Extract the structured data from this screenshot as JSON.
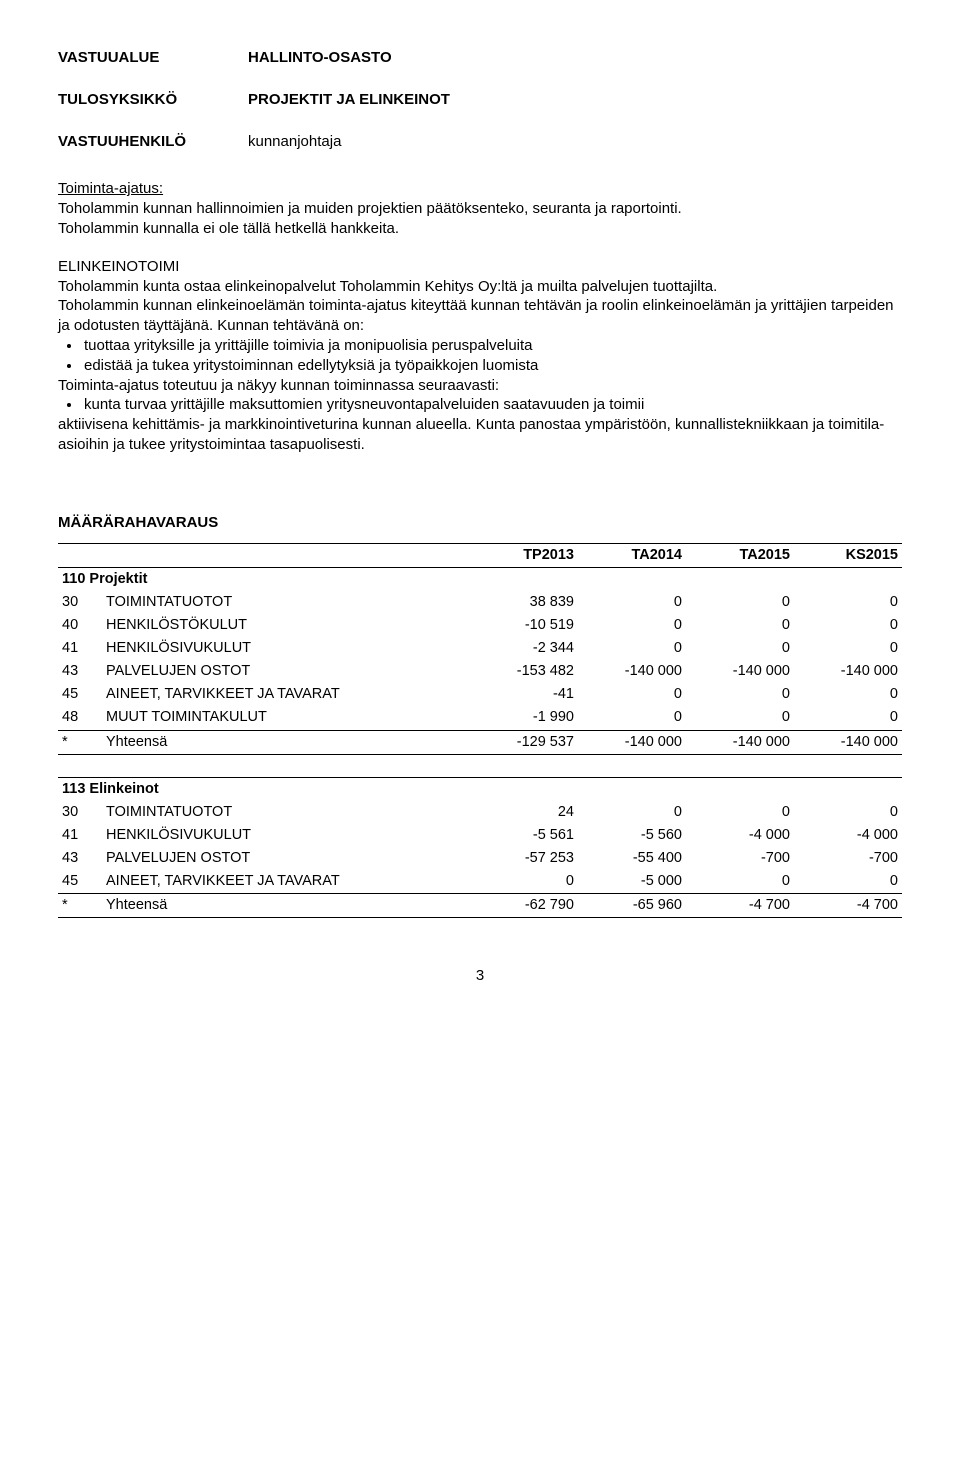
{
  "header": {
    "rows": [
      {
        "label": "VASTUUALUE",
        "value": "HALLINTO-OSASTO"
      },
      {
        "label": "TULOSYKSIKKÖ",
        "value": "PROJEKTIT JA ELINKEINOT"
      },
      {
        "label": "VASTUUHENKILÖ",
        "value": "kunnanjohtaja",
        "plain": true
      }
    ]
  },
  "body": {
    "p1_label": "Toimin­ta-ajatus:",
    "p1": "Toholammin kunnan hallinnoimien ja muiden projektien päätöksenteko, seuranta ja raportointi.",
    "p2": "Toholammin kunnalla ei ole tällä hetkellä hankkeita.",
    "p3_label": "ELINKEINOTOIMI",
    "p3": "Toholammin kunta ostaa elinkeinopalvelut Toholammin Kehitys Oy:ltä ja muilta palvelujen tuottajilta.",
    "p4": "Toholammin kunnan elinkeinoelämän toimin­ta-ajatus kiteyttää kunnan tehtävän ja roolin elinkeinoelämän ja yrittäjien tarpeiden ja odotusten täyttäjänä. Kunnan tehtävänä on:",
    "bullets1": [
      "tuottaa yrityksille ja yrittäjille toimivia ja monipuolisia peruspalveluita",
      "edistää ja tukea yritystoiminnan edellytyksiä ja työpaikkojen luomista"
    ],
    "p5": "Toimin­ta-ajatus toteutuu ja näkyy kunnan toiminnassa seuraavasti:",
    "bullets2": [
      "kunta turvaa yrittäjille maksuttomien yritysneuvontapalveluiden saatavuuden ja toimii"
    ],
    "p6": "aktiivisena kehittämis- ja markkinointiveturina kunnan alueella. Kunta panostaa ympäristöön, kunnallistekniikkaan ja toimitila-asioihin ja tukee yritystoimintaa tasapuolisesti."
  },
  "fin": {
    "title": "MÄÄRÄRAHAVARAUS",
    "cols": [
      "TP2013",
      "TA2014",
      "TA2015",
      "KS2015"
    ],
    "blocks": [
      {
        "head": "110  Projektit",
        "rows": [
          {
            "code": "30",
            "label": "TOIMINTATUOTOT",
            "v": [
              "38 839",
              "0",
              "0",
              "0"
            ]
          },
          {
            "code": "40",
            "label": "HENKILÖSTÖKULUT",
            "v": [
              "-10 519",
              "0",
              "0",
              "0"
            ]
          },
          {
            "code": "41",
            "label": "HENKILÖSIVUKULUT",
            "v": [
              "-2 344",
              "0",
              "0",
              "0"
            ]
          },
          {
            "code": "43",
            "label": "PALVELUJEN OSTOT",
            "v": [
              "-153 482",
              "-140 000",
              "-140 000",
              "-140 000"
            ]
          },
          {
            "code": "45",
            "label": "AINEET, TARVIKKEET JA TAVARAT",
            "v": [
              "-41",
              "0",
              "0",
              "0"
            ]
          },
          {
            "code": "48",
            "label": "MUUT TOIMINTAKULUT",
            "v": [
              "-1 990",
              "0",
              "0",
              "0"
            ],
            "lastline": true
          },
          {
            "code": "*",
            "label": "Yhteensä",
            "v": [
              "-129 537",
              "-140 000",
              "-140 000",
              "-140 000"
            ],
            "total": true
          }
        ]
      },
      {
        "head": "113  Elinkeinot",
        "rows": [
          {
            "code": "30",
            "label": "TOIMINTATUOTOT",
            "v": [
              "24",
              "0",
              "0",
              "0"
            ]
          },
          {
            "code": "41",
            "label": "HENKILÖSIVUKULUT",
            "v": [
              "-5 561",
              "-5 560",
              "-4 000",
              "-4 000"
            ]
          },
          {
            "code": "43",
            "label": "PALVELUJEN OSTOT",
            "v": [
              "-57 253",
              "-55 400",
              "-700",
              "-700"
            ]
          },
          {
            "code": "45",
            "label": "AINEET, TARVIKKEET JA TAVARAT",
            "v": [
              "0",
              "-5 000",
              "0",
              "0"
            ],
            "lastline": true
          },
          {
            "code": "*",
            "label": "Yhteensä",
            "v": [
              "-62 790",
              "-65 960",
              "-4 700",
              "-4 700"
            ],
            "total": true
          }
        ]
      }
    ]
  },
  "page": "3"
}
